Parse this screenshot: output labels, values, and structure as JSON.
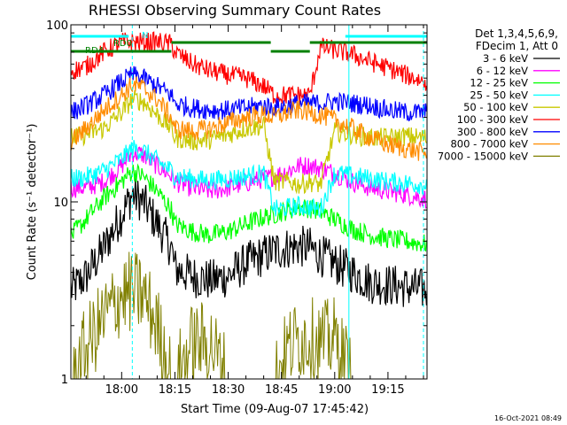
{
  "chart_data": {
    "type": "line",
    "title": "RHESSI Observing Summary Count Rates",
    "xlabel": "Start Time (09-Aug-07 17:45:42)",
    "ylabel": "Count Rate (s⁻¹ detector⁻¹)",
    "y_scale": "log",
    "ylim": [
      1,
      100
    ],
    "xlim": [
      "17:45:42",
      "19:26:00"
    ],
    "x_ticks": [
      "18:00",
      "18:15",
      "18:30",
      "18:45",
      "19:00",
      "19:15"
    ],
    "y_ticks": [
      "1",
      "10",
      "100"
    ],
    "legend_header": [
      "Det 1,3,4,5,6,9,",
      "FDecim 1, Att 0"
    ],
    "legend_position": "right",
    "footer": "16-Oct-2021 08:49",
    "flags": [
      {
        "label": "N",
        "color": "#00ffff",
        "segments": [
          [
            "17:45:42",
            "18:02:00"
          ],
          [
            "19:03:00",
            "19:26:00"
          ]
        ]
      },
      {
        "label": "RD0",
        "color": "#008000",
        "segments": [
          [
            "17:48:00",
            "18:14:00"
          ],
          [
            "18:14:00",
            "18:42:00"
          ],
          [
            "18:42:00",
            "18:53:00"
          ],
          [
            "18:53:00",
            "19:26:00"
          ]
        ]
      },
      {
        "label": "RD4",
        "color": "#008000",
        "segments": [
          [
            "17:45:42",
            "17:55:00"
          ]
        ]
      }
    ],
    "vertical_markers": [
      {
        "time": "17:45:42",
        "color": "#00ffff",
        "style": "solid"
      },
      {
        "time": "18:03:00",
        "color": "#00ffff",
        "style": "dashed"
      },
      {
        "time": "19:04:00",
        "color": "#00ffff",
        "style": "solid"
      },
      {
        "time": "19:25:00",
        "color": "#00ffff",
        "style": "dashed"
      }
    ],
    "x": [
      "17:46",
      "17:50",
      "17:55",
      "18:00",
      "18:03",
      "18:06",
      "18:10",
      "18:14",
      "18:15",
      "18:20",
      "18:25",
      "18:30",
      "18:35",
      "18:40",
      "18:43",
      "18:47",
      "18:50",
      "18:53",
      "18:56",
      "19:00",
      "19:05",
      "19:10",
      "19:15",
      "19:20",
      "19:25"
    ],
    "series": [
      {
        "name": "3 - 6 keV",
        "color": "#000000",
        "values": [
          3.2,
          3.8,
          5.5,
          8.5,
          11,
          10,
          7.5,
          5.5,
          4.2,
          3.8,
          3.6,
          3.8,
          4.5,
          5,
          5.3,
          5.5,
          5.6,
          5.5,
          5,
          4.5,
          4,
          3.5,
          3.4,
          3.3,
          3.2
        ]
      },
      {
        "name": "6 - 12 keV",
        "color": "#ff00ff",
        "values": [
          12,
          12,
          13,
          16,
          19,
          18.5,
          16,
          14,
          13,
          12,
          11.5,
          12,
          12.8,
          13.5,
          14,
          15,
          16,
          16,
          15.5,
          14.5,
          13,
          12,
          11.5,
          11,
          10.5
        ]
      },
      {
        "name": "12 - 25 keV",
        "color": "#00ff00",
        "values": [
          6.5,
          8,
          10.5,
          13,
          15,
          14,
          11.5,
          9,
          7.5,
          6.8,
          6.5,
          6.8,
          7.5,
          8.2,
          8.5,
          9,
          9.3,
          9.2,
          8.8,
          8,
          7,
          6.5,
          6.2,
          6,
          5.8
        ]
      },
      {
        "name": "25 - 50 keV",
        "color": "#00ffff",
        "values": [
          13.5,
          13.8,
          15,
          17.5,
          20,
          19.5,
          17,
          15,
          14,
          13.5,
          13.2,
          13.5,
          14,
          14.5,
          9,
          9.3,
          9.5,
          9.3,
          9.1,
          14.5,
          14,
          13.5,
          13,
          12.8,
          12.5
        ]
      },
      {
        "name": "50 - 100 keV",
        "color": "#c8c800",
        "values": [
          23,
          24,
          26,
          32,
          38,
          37,
          31,
          26,
          23,
          22,
          22.5,
          24,
          26,
          27,
          13,
          13,
          12.5,
          13,
          12.5,
          25,
          24,
          23,
          23,
          23.5,
          23
        ]
      },
      {
        "name": "100 - 300 keV",
        "color": "#ff0000",
        "values": [
          55,
          58,
          70,
          80,
          80,
          80,
          80,
          78,
          70,
          60,
          55,
          52,
          50,
          45,
          40,
          40,
          40,
          40,
          75,
          72,
          68,
          62,
          57,
          52,
          48
        ]
      },
      {
        "name": "300 - 800 keV",
        "color": "#0000ff",
        "values": [
          32,
          35,
          40,
          48,
          52,
          50,
          45,
          40,
          36,
          34,
          33,
          33,
          34,
          35,
          34,
          35,
          36,
          36,
          36,
          37,
          36,
          35,
          33,
          32,
          32
        ]
      },
      {
        "name": "800 - 7000 keV",
        "color": "#ff8c00",
        "values": [
          22,
          26,
          33,
          40,
          46,
          44,
          38,
          30,
          26,
          25,
          26,
          28,
          30,
          31,
          30,
          32,
          33,
          32,
          31,
          29,
          26,
          23,
          21,
          20,
          19
        ]
      },
      {
        "name": "7000 - 15000 keV",
        "color": "#808000",
        "values": [
          1,
          1.5,
          2.2,
          3.0,
          3.1,
          3.0,
          2.0,
          1.0,
          1.0,
          1.6,
          1.6,
          1.0,
          1.0,
          1.0,
          1.0,
          1.5,
          1.7,
          1.7,
          1.6,
          1.7,
          1.0,
          1.0,
          1.0,
          1.0,
          1.0
        ]
      }
    ]
  }
}
